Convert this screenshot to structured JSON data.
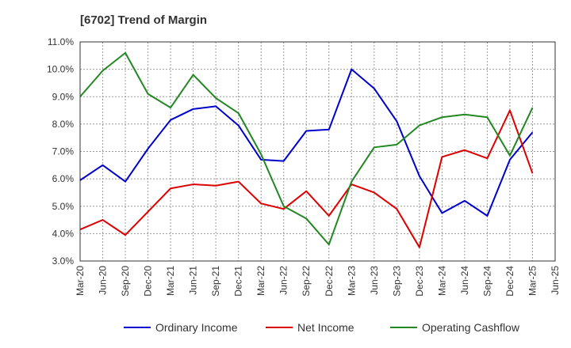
{
  "chart_data": {
    "type": "line",
    "title": "[6702]  Trend of Margin",
    "xlabel": "",
    "ylabel": "",
    "categories": [
      "Mar-20",
      "Jun-20",
      "Sep-20",
      "Dec-20",
      "Mar-21",
      "Jun-21",
      "Sep-21",
      "Dec-21",
      "Mar-22",
      "Jun-22",
      "Sep-22",
      "Dec-22",
      "Mar-23",
      "Jun-23",
      "Sep-23",
      "Dec-23",
      "Mar-24",
      "Jun-24",
      "Sep-24",
      "Dec-24",
      "Mar-25",
      "Jun-25"
    ],
    "ylim": [
      3.0,
      11.0
    ],
    "yticks": [
      "3.0%",
      "4.0%",
      "5.0%",
      "6.0%",
      "7.0%",
      "8.0%",
      "9.0%",
      "10.0%",
      "11.0%"
    ],
    "grid": true,
    "legend_position": "bottom",
    "series": [
      {
        "name": "Ordinary Income",
        "color": "#0000cc",
        "values": [
          5.95,
          6.5,
          5.9,
          7.1,
          8.15,
          8.55,
          8.65,
          7.95,
          6.7,
          6.65,
          7.75,
          7.8,
          10.0,
          9.3,
          8.1,
          6.1,
          4.75,
          5.2,
          4.65,
          6.7,
          7.7,
          null
        ]
      },
      {
        "name": "Net Income",
        "color": "#dd0000",
        "values": [
          4.15,
          4.5,
          3.95,
          4.8,
          5.65,
          5.8,
          5.75,
          5.9,
          5.1,
          4.9,
          5.55,
          4.65,
          5.8,
          5.5,
          4.9,
          3.5,
          6.8,
          7.05,
          6.75,
          8.5,
          6.2,
          null
        ]
      },
      {
        "name": "Operating Cashflow",
        "color": "#228822",
        "values": [
          9.0,
          9.95,
          10.6,
          9.1,
          8.6,
          9.8,
          8.95,
          8.4,
          6.9,
          5.0,
          4.55,
          3.6,
          5.9,
          7.15,
          7.25,
          7.95,
          8.25,
          8.35,
          8.25,
          6.85,
          8.6,
          null
        ]
      }
    ]
  }
}
